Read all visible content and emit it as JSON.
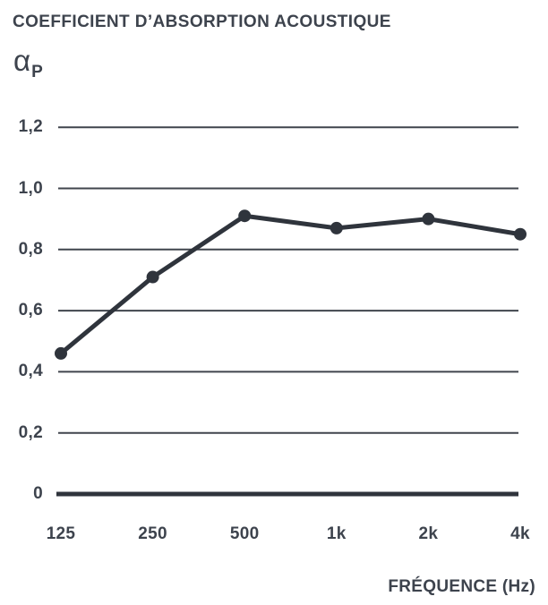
{
  "title": "COEFFICIENT D’ABSORPTION ACOUSTIQUE",
  "y_axis_symbol": {
    "alpha": "α",
    "subscript": "P"
  },
  "x_axis_title": "FRÉQUENCE (Hz)",
  "colors": {
    "text": "#3d434d",
    "line": "#2f343c",
    "grid": "#40454d",
    "background": "#ffffff"
  },
  "chart_data": {
    "type": "line",
    "title": "COEFFICIENT D’ABSORPTION ACOUSTIQUE",
    "ylabel": "αP",
    "xlabel": "FRÉQUENCE (Hz)",
    "categories": [
      "125",
      "250",
      "500",
      "1k",
      "2k",
      "4k"
    ],
    "values": [
      0.46,
      0.71,
      0.91,
      0.87,
      0.9,
      0.85
    ],
    "y_ticks": [
      0,
      0.2,
      0.4,
      0.6,
      0.8,
      1.0,
      1.2
    ],
    "y_tick_labels": [
      "0",
      "0,2",
      "0,4",
      "0,6",
      "0,8",
      "1,0",
      "1,2"
    ],
    "ylim": [
      0,
      1.2
    ],
    "grid": true,
    "legend": false,
    "marker": "circle"
  }
}
